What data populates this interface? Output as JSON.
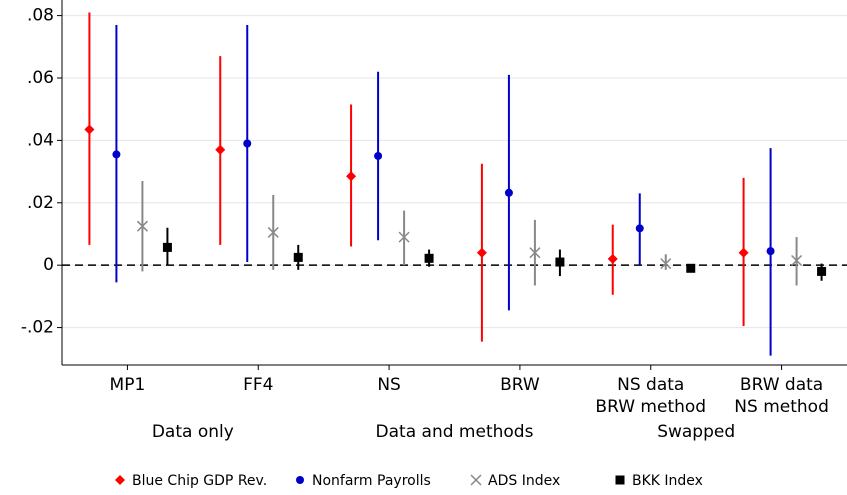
{
  "chart_data": {
    "type": "errorbar",
    "categories": [
      "MP1",
      "FF4",
      "NS",
      "BRW",
      "NS data\nBRW method",
      "BRW data\nNS method"
    ],
    "groups": [
      "Data only",
      "Data and methods",
      "Swapped"
    ],
    "ylim": [
      -0.032,
      0.085
    ],
    "yticks": [
      {
        "value": -0.02,
        "label": "-.02"
      },
      0,
      {
        "value": 0.02,
        "label": ".02"
      },
      {
        "value": 0.04,
        "label": ".04"
      },
      {
        "value": 0.06,
        "label": ".06"
      },
      {
        "value": 0.08,
        "label": ".08"
      }
    ],
    "grid": true,
    "reference_line": 0,
    "legend": "bottom",
    "series": [
      {
        "name": "Blue Chip GDP Rev.",
        "color": "#ff0000",
        "marker": "diamond",
        "values": [
          0.0435,
          0.037,
          0.0285,
          0.004,
          0.002,
          0.004
        ],
        "low": [
          0.0065,
          0.0065,
          0.006,
          -0.0245,
          -0.0095,
          -0.0195
        ],
        "high": [
          0.081,
          0.067,
          0.0515,
          0.0325,
          0.013,
          0.028
        ]
      },
      {
        "name": "Nonfarm Payrolls",
        "color": "#0000cc",
        "marker": "circle",
        "values": [
          0.0355,
          0.039,
          0.035,
          0.0232,
          0.0118,
          0.0045
        ],
        "low": [
          -0.0055,
          0.001,
          0.008,
          -0.0145,
          0,
          -0.029
        ],
        "high": [
          0.077,
          0.077,
          0.062,
          0.061,
          0.023,
          0.0375
        ]
      },
      {
        "name": "ADS Index",
        "color": "#888888",
        "marker": "x",
        "values": [
          0.0125,
          0.0105,
          0.009,
          0.004,
          0.0005,
          0.0015
        ],
        "low": [
          -0.002,
          -0.0015,
          0,
          -0.0065,
          -0.0015,
          -0.0065
        ],
        "high": [
          0.027,
          0.0225,
          0.0175,
          0.0145,
          0.0035,
          0.009
        ]
      },
      {
        "name": "BKK Index",
        "color": "#000000",
        "marker": "square",
        "values": [
          0.0057,
          0.0025,
          0.0022,
          0.001,
          -0.001,
          -0.002
        ],
        "low": [
          0,
          -0.0015,
          -0.0005,
          -0.0035,
          -0.0015,
          -0.005
        ],
        "high": [
          0.012,
          0.0065,
          0.005,
          0.005,
          -0.0005,
          0.0005
        ]
      }
    ]
  }
}
